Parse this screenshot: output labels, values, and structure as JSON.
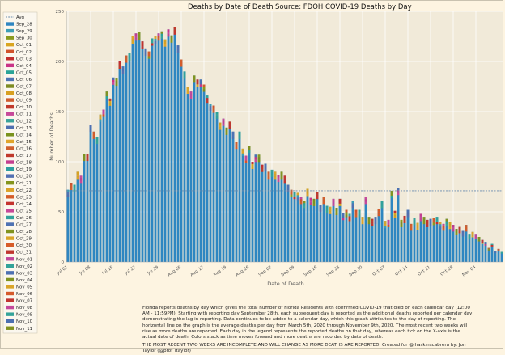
{
  "chart_data": {
    "type": "bar",
    "stacked": true,
    "title": "Deaths by Date of Death",
    "source": "Source: FDOH COVID-19 Deaths by Day",
    "xlabel": "Date of Death",
    "ylabel": "Number of Deaths",
    "ylim": [
      0,
      250
    ],
    "yticks": [
      0,
      50,
      100,
      150,
      200,
      250
    ],
    "avg_line_value": 71,
    "grid": true,
    "legend_placement": "left",
    "x_tick_labels": [
      "Jul 01",
      "Jul 08",
      "Jul 15",
      "Jul 22",
      "Jul 29",
      "Aug 05",
      "Aug 12",
      "Aug 19",
      "Aug 26",
      "Sep 02",
      "Sep 09",
      "Sep 16",
      "Sep 23",
      "Sep 30",
      "Oct 07",
      "Oct 14",
      "Oct 21",
      "Oct 28",
      "Nov 04"
    ],
    "start_date": "2020-07-01",
    "values": [
      72,
      79,
      77,
      90,
      86,
      108,
      108,
      137,
      130,
      125,
      147,
      152,
      170,
      163,
      184,
      183,
      200,
      195,
      206,
      208,
      225,
      228,
      229,
      220,
      213,
      210,
      223,
      225,
      228,
      230,
      222,
      232,
      226,
      234,
      216,
      202,
      190,
      175,
      170,
      186,
      182,
      182,
      177,
      166,
      158,
      156,
      150,
      139,
      143,
      134,
      140,
      130,
      120,
      130,
      113,
      106,
      116,
      100,
      107,
      107,
      97,
      98,
      90,
      92,
      90,
      87,
      90,
      86,
      77,
      72,
      70,
      69,
      65,
      61,
      73,
      64,
      63,
      70,
      57,
      65,
      56,
      55,
      63,
      54,
      63,
      49,
      52,
      48,
      61,
      52,
      52,
      45,
      65,
      45,
      43,
      45,
      53,
      61,
      41,
      42,
      71,
      51,
      74,
      42,
      46,
      52,
      38,
      44,
      39,
      48,
      45,
      42,
      43,
      44,
      45,
      40,
      38,
      43,
      40,
      37,
      33,
      35,
      31,
      37,
      28,
      30,
      28,
      25,
      22,
      20,
      14,
      18,
      11,
      13,
      10
    ],
    "legend": [
      "Avg",
      "Sep_28",
      "Sep_29",
      "Sep_30",
      "Oct_01",
      "Oct_02",
      "Oct_03",
      "Oct_04",
      "Oct_05",
      "Oct_06",
      "Oct_07",
      "Oct_08",
      "Oct_09",
      "Oct_10",
      "Oct_11",
      "Oct_12",
      "Oct_13",
      "Oct_14",
      "Oct_15",
      "Oct_16",
      "Oct_17",
      "Oct_18",
      "Oct_19",
      "Oct_20",
      "Oct_21",
      "Oct_22",
      "Oct_23",
      "Oct_24",
      "Oct_25",
      "Oct_26",
      "Oct_27",
      "Oct_28",
      "Oct_29",
      "Oct_30",
      "Oct_31",
      "Nov_01",
      "Nov_02",
      "Nov_03",
      "Nov_04",
      "Nov_05",
      "Nov_06",
      "Nov_07",
      "Nov_08",
      "Nov_09",
      "Nov_10",
      "Nov_11"
    ],
    "legend_colors": [
      "#6a8caf",
      "#2f86c1",
      "#3b9db6",
      "#8a9a1e",
      "#d9a521",
      "#d1522b",
      "#c22f2f",
      "#c93487",
      "#2aa498",
      "#4e74b4",
      "#7d8b22",
      "#d8a021",
      "#cf5c2e",
      "#c0392b",
      "#c74a9a",
      "#3aa39a",
      "#4f6fb0",
      "#7a921d",
      "#e0a52b",
      "#d0602e",
      "#c0392b",
      "#c43f8f",
      "#2e9fa0",
      "#5270b2",
      "#84941d",
      "#dba229",
      "#d45c2a",
      "#c4342f",
      "#c6489a",
      "#31a29b",
      "#4e72b3",
      "#80931f",
      "#d9a62a",
      "#d75c28",
      "#bf352f",
      "#c2479a",
      "#32a299",
      "#4d71b2",
      "#819320",
      "#daa52a",
      "#d55a2b",
      "#c13430",
      "#c4489b",
      "#34a39a",
      "#4c70b1",
      "#82921f"
    ],
    "series_main_color": "#2e86c1",
    "avg_color": "#6a8caf"
  },
  "footnote": {
    "body": "Florida reports deaths by day which gives the total number of Florida Residents with confirmed COVID-19 that died on each calendar day (12:00 AM - 11:59PM). Starting with reporting day September 28th, each subsequent day is reported as the additional deaths reported per calendar day, demonstrating the lag in reporting. Data continues to be added to a calendar day, which this graph attributes to the day of reporting. The horizontal line on the graph is the average deaths per day from March 5th, 2020 through November 9th, 2020. The most recent two weeks will rise as more deaths are reported. Each day in the legend represents the reported deaths on that day, whereas each tick on the X-axis is the actual date of death. Colors stack as time moves forward and more deaths are recorded by date of death.",
    "last": "THE MOST RECENT TWO WEEKS ARE INCOMPLETE AND WILL CHANGE AS MORE DEATHS ARE REPORTED. Created for @jhaskinscabrera by: Jon Taylor (@prof_itaylor)"
  }
}
